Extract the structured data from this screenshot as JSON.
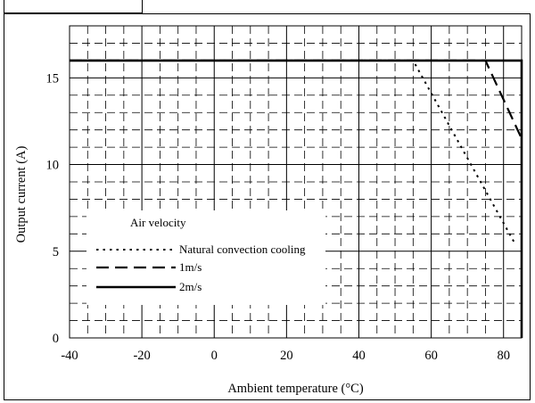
{
  "chart_data": {
    "type": "line",
    "xlabel": "Ambient temperature (°C)",
    "ylabel": "Output current (A)",
    "xlim": [
      -40,
      85
    ],
    "ylim": [
      0,
      18
    ],
    "x_ticks": [
      -40,
      -20,
      0,
      20,
      40,
      60,
      80
    ],
    "y_ticks": [
      0,
      5,
      10,
      15
    ],
    "grid": true,
    "legend": {
      "title": "Air velocity",
      "placement": "lower-left"
    },
    "series": [
      {
        "name": "Natural convection cooling",
        "style": "dotted",
        "x": [
          -40,
          55,
          83
        ],
        "y": [
          16,
          16,
          5.5
        ]
      },
      {
        "name": "1m/s",
        "style": "dashed",
        "x": [
          -40,
          75,
          85
        ],
        "y": [
          16,
          16,
          11.5
        ]
      },
      {
        "name": "2m/s",
        "style": "solid",
        "x": [
          -40,
          85,
          85
        ],
        "y": [
          16,
          16,
          0
        ]
      }
    ]
  }
}
